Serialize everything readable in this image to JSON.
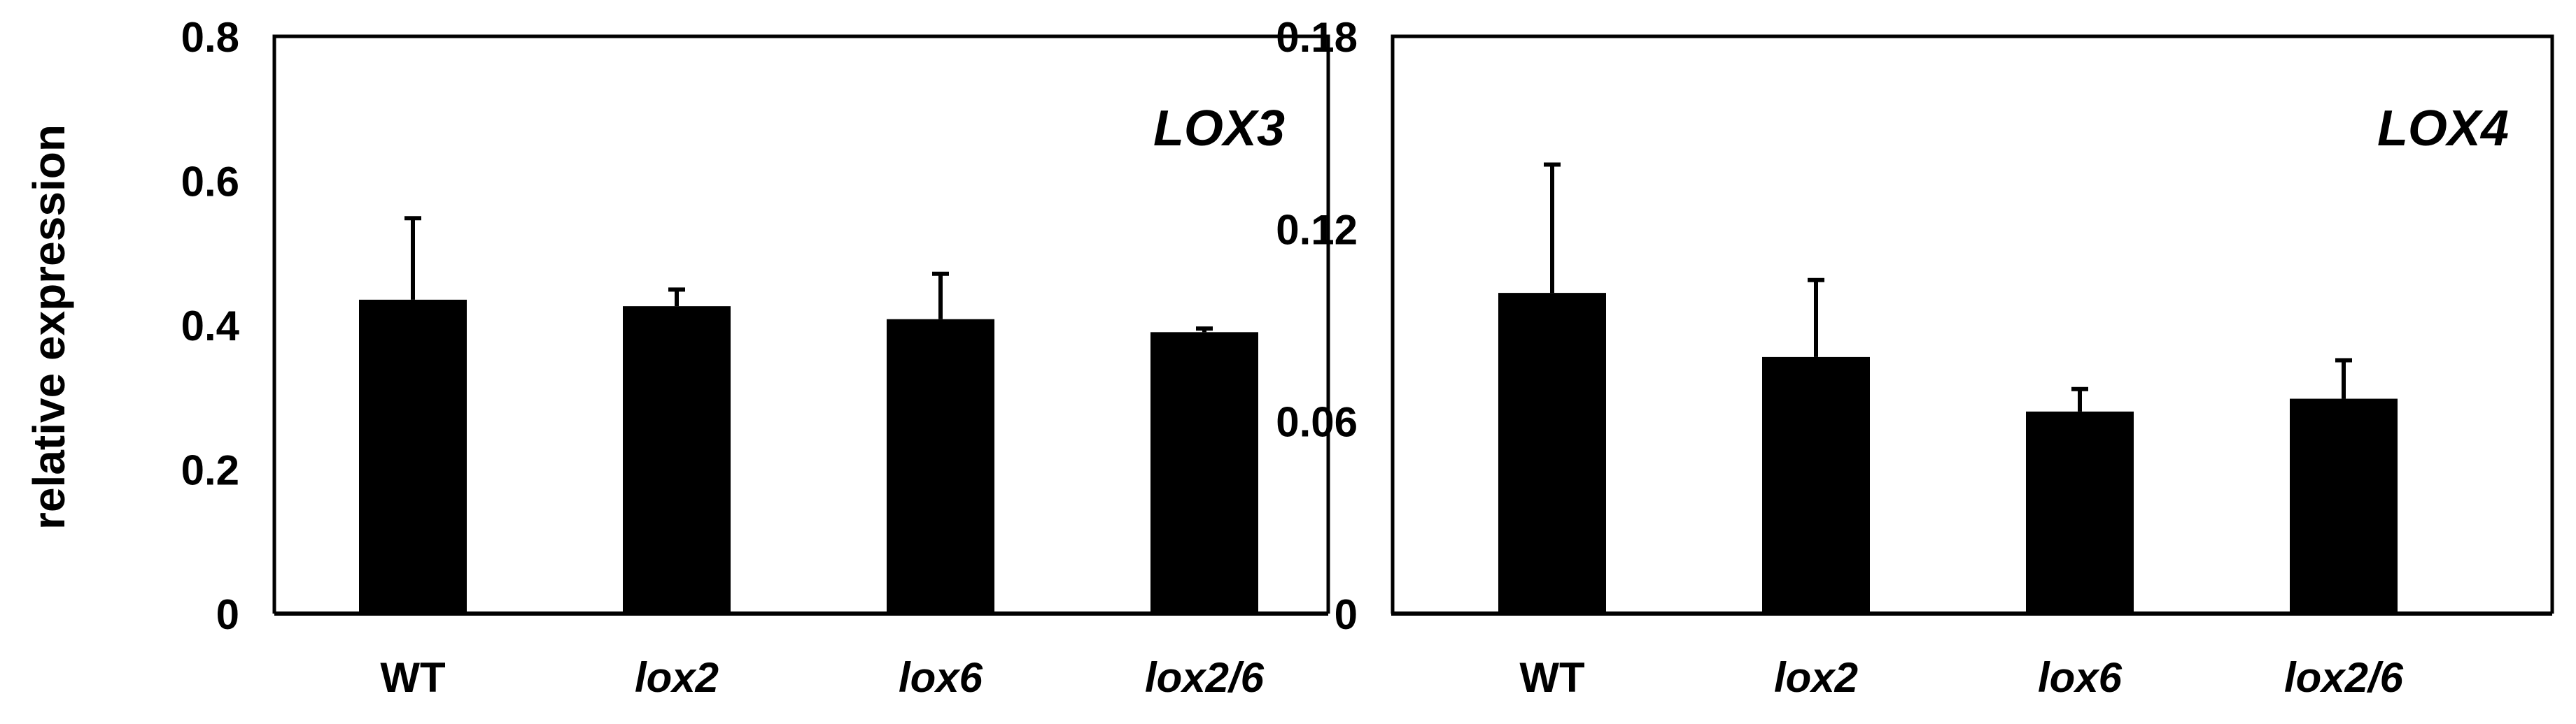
{
  "ylabel": "relative expression",
  "colors": {
    "bar": "#000000",
    "frame": "#000000",
    "background": "#ffffff"
  },
  "chart_data": [
    {
      "type": "bar",
      "title": "LOX3",
      "xlabel": "",
      "ylabel": "relative expression",
      "categories": [
        "WT",
        "lox2",
        "lox6",
        "lox2/6"
      ],
      "category_italic": [
        false,
        true,
        true,
        true
      ],
      "values": [
        0.435,
        0.426,
        0.408,
        0.39
      ],
      "errors": [
        0.113,
        0.023,
        0.063,
        0.005
      ],
      "ylim": [
        0,
        0.8
      ],
      "yticks": [
        0,
        0.2,
        0.4,
        0.6,
        0.8
      ],
      "ytick_labels": [
        "0",
        "0.2",
        "0.4",
        "0.6",
        "0.8"
      ],
      "grid": false,
      "legend": "none"
    },
    {
      "type": "bar",
      "title": "LOX4",
      "xlabel": "",
      "ylabel": "",
      "categories": [
        "WT",
        "lox2",
        "lox6",
        "lox2/6"
      ],
      "category_italic": [
        false,
        true,
        true,
        true
      ],
      "values": [
        0.1,
        0.08,
        0.063,
        0.067
      ],
      "errors": [
        0.04,
        0.024,
        0.007,
        0.012
      ],
      "ylim": [
        0,
        0.18
      ],
      "yticks": [
        0,
        0.06,
        0.12,
        0.18
      ],
      "ytick_labels": [
        "0",
        "0.06",
        "0.12",
        "0.18"
      ],
      "grid": false,
      "legend": "none"
    }
  ]
}
